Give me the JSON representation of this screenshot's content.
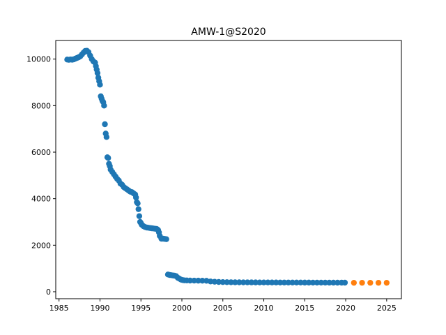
{
  "chart_data": {
    "type": "scatter",
    "title": "AMW-1@S2020",
    "xlabel": "",
    "ylabel": "",
    "xlim": [
      1984.6,
      2026.8
    ],
    "ylim": [
      -300,
      10800
    ],
    "xticks": [
      1985,
      1990,
      1995,
      2000,
      2005,
      2010,
      2015,
      2020,
      2025
    ],
    "yticks": [
      0,
      2000,
      4000,
      6000,
      8000,
      10000
    ],
    "grid": false,
    "colors": {
      "observed": "#1f77b4",
      "forecast": "#ff7f0e"
    },
    "series": [
      {
        "role": "observed",
        "x": [
          1986.0,
          1986.2,
          1986.4,
          1986.6,
          1986.8,
          1987.0,
          1987.2,
          1987.4,
          1987.6,
          1987.8,
          1988.0,
          1988.2,
          1988.4,
          1988.6,
          1988.8,
          1989.0,
          1989.2,
          1989.4,
          1989.5,
          1989.6,
          1989.7,
          1989.8,
          1989.9,
          1990.0,
          1990.1,
          1990.2,
          1990.3,
          1990.4,
          1990.5,
          1990.6,
          1990.7,
          1990.8,
          1990.9,
          1991.0,
          1991.1,
          1991.2,
          1991.3,
          1991.5,
          1991.7,
          1991.9,
          1992.1,
          1992.3,
          1992.5,
          1992.7,
          1992.9,
          1993.1,
          1993.3,
          1993.5,
          1993.7,
          1993.9,
          1994.1,
          1994.3,
          1994.4,
          1994.5,
          1994.6,
          1994.7,
          1994.8,
          1994.9,
          1995.0,
          1995.1,
          1995.3,
          1995.5,
          1995.7,
          1995.9,
          1996.1,
          1996.3,
          1996.5,
          1996.7,
          1996.9,
          1997.0,
          1997.1,
          1997.2,
          1997.3,
          1997.5,
          1997.7,
          1997.9,
          1998.1,
          1998.3,
          1998.5,
          1998.7,
          1998.9,
          1999.1,
          1999.3,
          1999.5,
          1999.7,
          1999.9,
          2000.1,
          2000.3,
          2000.6,
          2001.0,
          2001.5,
          2002.0,
          2002.5,
          2003.0,
          2003.5,
          2004.0,
          2004.5,
          2005.0,
          2005.5,
          2006.0,
          2006.5,
          2007.0,
          2007.5,
          2008.0,
          2008.5,
          2009.0,
          2009.5,
          2010.0,
          2010.5,
          2011.0,
          2011.5,
          2012.0,
          2012.5,
          2013.0,
          2013.5,
          2014.0,
          2014.5,
          2015.0,
          2015.5,
          2016.0,
          2016.5,
          2017.0,
          2017.5,
          2018.0,
          2018.5,
          2019.0,
          2019.5,
          2019.9
        ],
        "y": [
          9980,
          9970,
          9985,
          9975,
          9990,
          10020,
          10050,
          10080,
          10120,
          10200,
          10280,
          10350,
          10360,
          10300,
          10150,
          10000,
          9900,
          9850,
          9700,
          9550,
          9400,
          9200,
          9050,
          8900,
          8400,
          8300,
          8200,
          8150,
          8000,
          7200,
          6800,
          6650,
          5780,
          5750,
          5500,
          5400,
          5250,
          5150,
          5050,
          4950,
          4850,
          4780,
          4650,
          4600,
          4500,
          4450,
          4400,
          4350,
          4300,
          4280,
          4230,
          4180,
          4050,
          3850,
          3800,
          3550,
          3250,
          3000,
          2950,
          2880,
          2820,
          2780,
          2760,
          2750,
          2740,
          2730,
          2720,
          2710,
          2700,
          2680,
          2650,
          2550,
          2400,
          2280,
          2280,
          2270,
          2260,
          740,
          720,
          710,
          700,
          690,
          670,
          600,
          560,
          520,
          500,
          490,
          485,
          480,
          478,
          476,
          474,
          470,
          440,
          430,
          420,
          415,
          410,
          408,
          406,
          405,
          404,
          403,
          402,
          401,
          400,
          400,
          399,
          398,
          398,
          397,
          397,
          396,
          396,
          395,
          395,
          394,
          394,
          393,
          393,
          392,
          392,
          391,
          391,
          390,
          390,
          390
        ],
        "y_note": ""
      },
      {
        "role": "forecast",
        "x": [
          2021,
          2022,
          2023,
          2024,
          2025
        ],
        "y": [
          385,
          385,
          385,
          385,
          385
        ]
      }
    ]
  }
}
